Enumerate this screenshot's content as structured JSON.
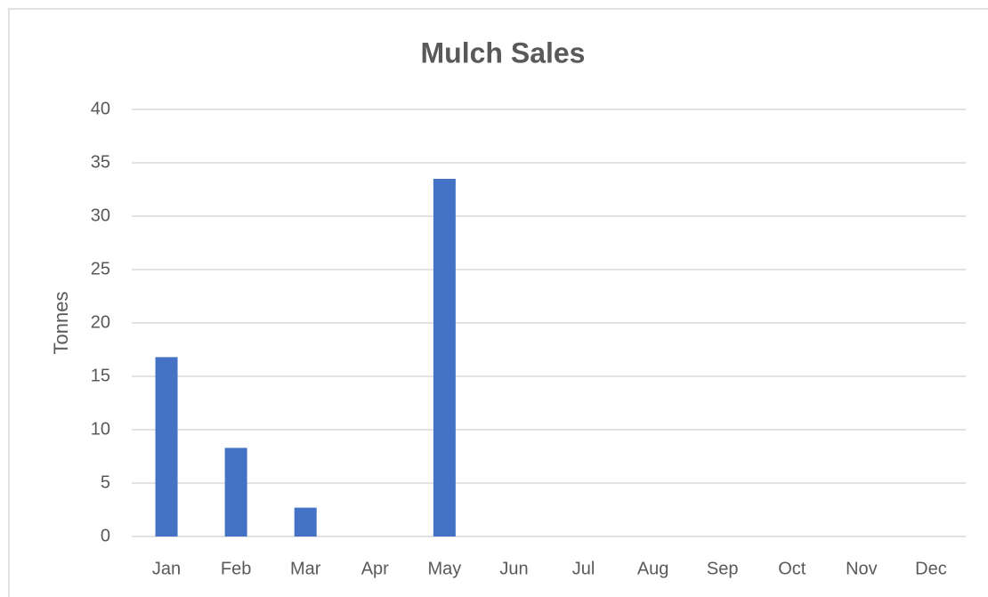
{
  "chart_data": {
    "type": "bar",
    "title": "Mulch Sales",
    "y_label": "Tonnes",
    "categories": [
      "Jan",
      "Feb",
      "Mar",
      "Apr",
      "May",
      "Jun",
      "Jul",
      "Aug",
      "Sep",
      "Oct",
      "Nov",
      "Dec"
    ],
    "values": [
      16.8,
      8.3,
      2.7,
      0,
      33.5,
      0,
      0,
      0,
      0,
      0,
      0,
      0
    ],
    "color": "#4472c4",
    "ylim": [
      0,
      40
    ],
    "yticks": [
      0,
      5,
      10,
      15,
      20,
      25,
      30,
      35,
      40
    ],
    "grid": true
  }
}
